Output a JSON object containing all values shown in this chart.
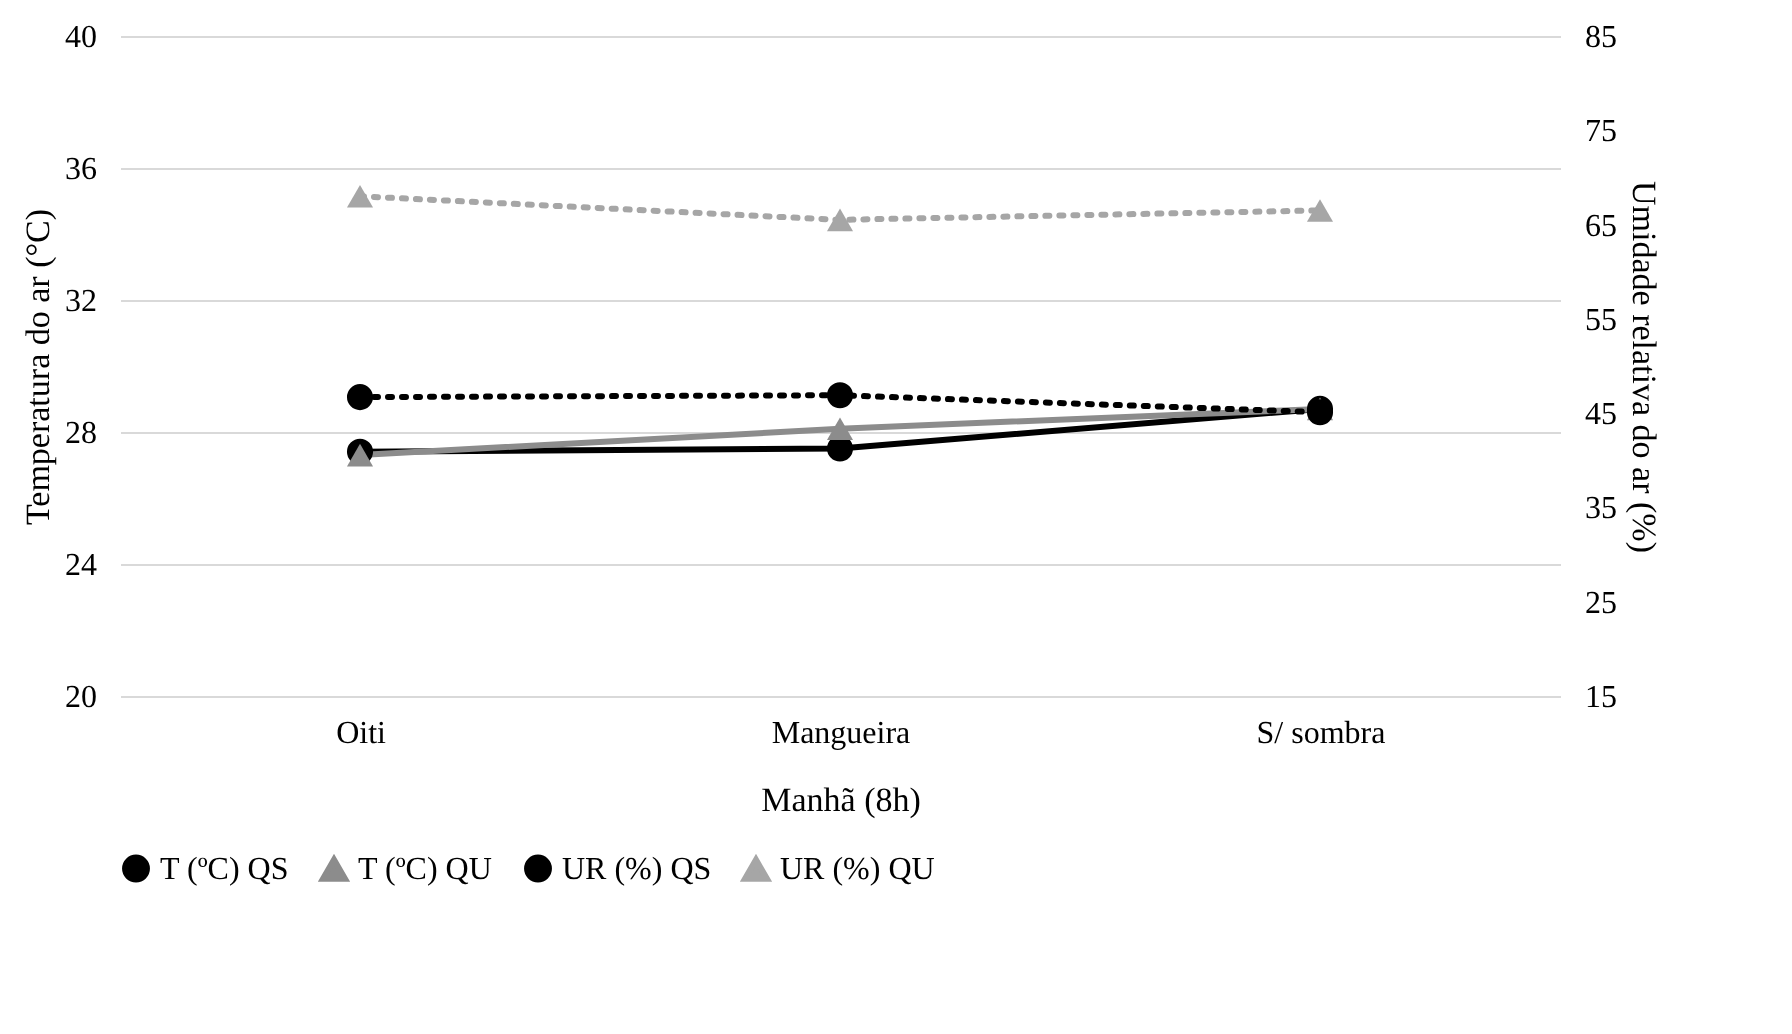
{
  "chart_data": {
    "type": "line",
    "xlabel": "Manhã (8h)",
    "ylabel": "Temperatura do ar (°C)",
    "y2label": "Umidade relativa do ar (%)",
    "categories": [
      "Oiti",
      "Mangueira",
      "S/ sombra"
    ],
    "series": [
      {
        "name": "T (ºC) QS",
        "color": "#000000",
        "values": [
          27.4,
          27.5,
          28.7
        ],
        "marker": "circle",
        "line_style": "solid"
      },
      {
        "name": "T (ºC) QU",
        "color": "#8c8c8c",
        "values": [
          27.3,
          28.1,
          28.7
        ],
        "marker": "triangle",
        "line_style": "solid"
      },
      {
        "name": "UR (%) QS",
        "color": "#000000",
        "values": [
          46.7,
          46.9,
          45.1
        ],
        "marker": "circle",
        "line_style": "dotted",
        "axis": "y2"
      },
      {
        "name": "UR (%) QU",
        "color": "#a6a6a6",
        "values": [
          68,
          65.5,
          66.5
        ],
        "marker": "triangle",
        "line_style": "dotted",
        "axis": "y2"
      }
    ],
    "ylim": [
      20,
      40
    ],
    "yticks": [
      20,
      24,
      28,
      32,
      36,
      40
    ],
    "y2lim": [
      15,
      85
    ],
    "y2ticks": [
      15,
      25,
      35,
      45,
      55,
      65,
      75,
      85
    ],
    "grid": "y",
    "legend": "bottom"
  }
}
